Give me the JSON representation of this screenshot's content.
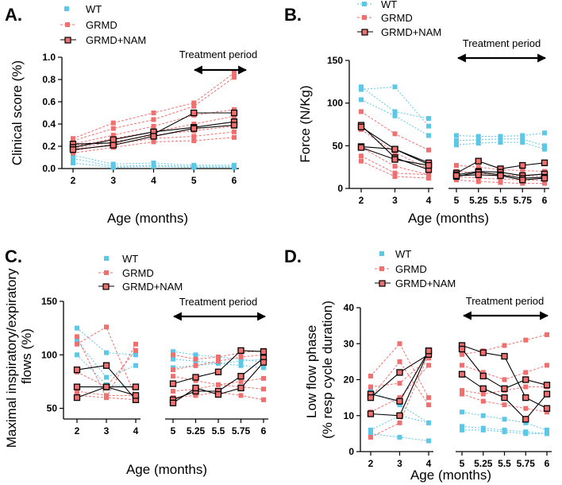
{
  "colors": {
    "wt": "#5bc8e8",
    "grmd": "#f07070",
    "nam_edge": "#000000",
    "nam_fill": "#f07070",
    "axis": "#000000"
  },
  "legend": {
    "wt": "WT",
    "grmd": "GRMD",
    "nam": "GRMD+NAM"
  },
  "chart_data": [
    {
      "panel": "A.",
      "type": "line",
      "ylabel": "Clinical score (%)",
      "xlabel": "Age (months)",
      "yticks": [
        0.0,
        0.2,
        0.4,
        0.6,
        0.8,
        1.0
      ],
      "ytick_labels": [
        "0.0",
        "0.2",
        "0.4",
        "0.6",
        "0.8",
        "1.0"
      ],
      "ylim": [
        0,
        1.0
      ],
      "x": [
        2,
        3,
        4,
        5,
        6
      ],
      "xtick_labels": [
        "2",
        "3",
        "4",
        "5",
        "6"
      ],
      "treatment_label": "Treatment period",
      "treatment_range": [
        5,
        6
      ],
      "series": [
        {
          "group": "wt",
          "values": [
            0.12,
            0.04,
            0.05,
            0.03,
            0.03
          ]
        },
        {
          "group": "wt",
          "values": [
            0.09,
            0.02,
            0.03,
            0.02,
            0.02
          ]
        },
        {
          "group": "wt",
          "values": [
            0.05,
            0.01,
            0.02,
            0.01,
            0.01
          ]
        },
        {
          "group": "grmd",
          "values": [
            0.27,
            0.41,
            0.5,
            0.59,
            0.86
          ]
        },
        {
          "group": "grmd",
          "values": [
            0.25,
            0.36,
            0.44,
            0.56,
            0.82
          ]
        },
        {
          "group": "grmd",
          "values": [
            0.22,
            0.3,
            0.38,
            0.48,
            0.53
          ]
        },
        {
          "group": "grmd",
          "values": [
            0.2,
            0.27,
            0.33,
            0.4,
            0.47
          ]
        },
        {
          "group": "grmd",
          "values": [
            0.18,
            0.24,
            0.3,
            0.34,
            0.38
          ]
        },
        {
          "group": "grmd",
          "values": [
            0.16,
            0.22,
            0.27,
            0.29,
            0.33
          ]
        },
        {
          "group": "grmd",
          "values": [
            0.14,
            0.19,
            0.24,
            0.25,
            0.28
          ]
        },
        {
          "group": "nam",
          "values": [
            0.22,
            0.23,
            0.31,
            0.5,
            0.5
          ]
        },
        {
          "group": "nam",
          "values": [
            0.19,
            0.26,
            0.33,
            0.37,
            0.42
          ]
        },
        {
          "group": "nam",
          "values": [
            0.17,
            0.21,
            0.29,
            0.36,
            0.39
          ]
        }
      ]
    },
    {
      "panel": "B.",
      "type": "line",
      "ylabel": "Force (N/Kg)",
      "xlabel": "Age (months)",
      "yticks": [
        0,
        50,
        100,
        150
      ],
      "ytick_labels": [
        "0",
        "50",
        "100",
        "150"
      ],
      "ylim": [
        0,
        150
      ],
      "x_left": [
        2,
        3,
        4
      ],
      "xtick_labels_left": [
        "2",
        "3",
        "4"
      ],
      "x_right": [
        5,
        5.25,
        5.5,
        5.75,
        6
      ],
      "xtick_labels_right": [
        "5",
        "5.25",
        "5.5",
        "5.75",
        "6"
      ],
      "treatment_label": "Treatment period",
      "treatment_range": [
        5,
        6
      ],
      "series": [
        {
          "group": "wt",
          "segment": "left",
          "values": [
            119,
            90,
            82
          ]
        },
        {
          "group": "wt",
          "segment": "left",
          "values": [
            116,
            119,
            73
          ]
        },
        {
          "group": "wt",
          "segment": "left",
          "values": [
            104,
            85,
            62
          ]
        },
        {
          "group": "grmd",
          "segment": "left",
          "values": [
            90,
            64,
            45
          ]
        },
        {
          "group": "grmd",
          "segment": "left",
          "values": [
            69,
            42,
            23
          ]
        },
        {
          "group": "grmd",
          "segment": "left",
          "values": [
            48,
            26,
            16
          ]
        },
        {
          "group": "grmd",
          "segment": "left",
          "values": [
            38,
            18,
            16
          ]
        },
        {
          "group": "grmd",
          "segment": "left",
          "values": [
            32,
            14,
            12
          ]
        },
        {
          "group": "nam",
          "segment": "left",
          "values": [
            74,
            36,
            22
          ]
        },
        {
          "group": "nam",
          "segment": "left",
          "values": [
            72,
            46,
            28
          ]
        },
        {
          "group": "nam",
          "segment": "left",
          "values": [
            49,
            46,
            30
          ]
        },
        {
          "group": "nam",
          "segment": "left",
          "values": [
            48,
            34,
            27
          ]
        },
        {
          "group": "wt",
          "segment": "right",
          "values": [
            62,
            61,
            61,
            62,
            65
          ]
        },
        {
          "group": "wt",
          "segment": "right",
          "values": [
            56,
            57,
            58,
            58,
            50
          ]
        },
        {
          "group": "wt",
          "segment": "right",
          "values": [
            51,
            53,
            54,
            54,
            46
          ]
        },
        {
          "group": "grmd",
          "segment": "right",
          "values": [
            27,
            25,
            22,
            21,
            20
          ]
        },
        {
          "group": "grmd",
          "segment": "right",
          "values": [
            20,
            18,
            16,
            15,
            14
          ]
        },
        {
          "group": "grmd",
          "segment": "right",
          "values": [
            14,
            12,
            11,
            10,
            9
          ]
        },
        {
          "group": "grmd",
          "segment": "right",
          "values": [
            10,
            8,
            7,
            6,
            6
          ]
        },
        {
          "group": "nam",
          "segment": "right",
          "values": [
            18,
            32,
            23,
            27,
            30
          ]
        },
        {
          "group": "nam",
          "segment": "right",
          "values": [
            16,
            20,
            19,
            15,
            17
          ]
        },
        {
          "group": "nam",
          "segment": "right",
          "values": [
            14,
            19,
            16,
            12,
            13
          ]
        },
        {
          "group": "nam",
          "segment": "right",
          "values": [
            15,
            16,
            15,
            10,
            12
          ]
        }
      ]
    },
    {
      "panel": "C.",
      "type": "line",
      "ylabel_lines": [
        "Maximal inspiratory/expiratory",
        "flows (%)"
      ],
      "xlabel": "Age (months)",
      "yticks": [
        50,
        100,
        150
      ],
      "ytick_labels": [
        "50",
        "100",
        "150"
      ],
      "ylim": [
        40,
        150
      ],
      "x_left": [
        2,
        3,
        4
      ],
      "xtick_labels_left": [
        "2",
        "3",
        "4"
      ],
      "x_right": [
        5,
        5.25,
        5.5,
        5.75,
        6
      ],
      "xtick_labels_right": [
        "5",
        "5.25",
        "5.5",
        "5.75",
        "6"
      ],
      "treatment_label": "Treatment period",
      "treatment_range": [
        5,
        6
      ],
      "series": [
        {
          "group": "wt",
          "segment": "left",
          "values": [
            125,
            102,
            100
          ]
        },
        {
          "group": "wt",
          "segment": "left",
          "values": [
            113,
            79,
            90
          ]
        },
        {
          "group": "wt",
          "segment": "left",
          "values": [
            100,
            72,
            70
          ]
        },
        {
          "group": "grmd",
          "segment": "left",
          "values": [
            117,
            60,
            110
          ]
        },
        {
          "group": "grmd",
          "segment": "left",
          "values": [
            110,
            126,
            60
          ]
        },
        {
          "group": "grmd",
          "segment": "left",
          "values": [
            84,
            70,
            104
          ]
        },
        {
          "group": "grmd",
          "segment": "left",
          "values": [
            66,
            62,
            62
          ]
        },
        {
          "group": "grmd",
          "segment": "left",
          "values": [
            62,
            60,
            58
          ]
        },
        {
          "group": "nam",
          "segment": "left",
          "values": [
            86,
            90,
            58
          ]
        },
        {
          "group": "nam",
          "segment": "left",
          "values": [
            70,
            70,
            70
          ]
        },
        {
          "group": "nam",
          "segment": "left",
          "values": [
            60,
            70,
            62
          ]
        },
        {
          "group": "wt",
          "segment": "right",
          "values": [
            103,
            100,
            98,
            96,
            93
          ]
        },
        {
          "group": "wt",
          "segment": "right",
          "values": [
            96,
            94,
            92,
            90,
            88
          ]
        },
        {
          "group": "wt",
          "segment": "right",
          "values": [
            88,
            90,
            92,
            94,
            96
          ]
        },
        {
          "group": "grmd",
          "segment": "right",
          "values": [
            100,
            96,
            98,
            102,
            104
          ]
        },
        {
          "group": "grmd",
          "segment": "right",
          "values": [
            86,
            90,
            94,
            98,
            100
          ]
        },
        {
          "group": "grmd",
          "segment": "right",
          "values": [
            80,
            76,
            72,
            75,
            78
          ]
        },
        {
          "group": "grmd",
          "segment": "right",
          "values": [
            66,
            68,
            72,
            70,
            68
          ]
        },
        {
          "group": "grmd",
          "segment": "right",
          "values": [
            60,
            62,
            65,
            62,
            58
          ]
        },
        {
          "group": "nam",
          "segment": "right",
          "values": [
            73,
            79,
            84,
            104,
            103
          ]
        },
        {
          "group": "nam",
          "segment": "right",
          "values": [
            58,
            66,
            66,
            80,
            97
          ]
        },
        {
          "group": "nam",
          "segment": "right",
          "values": [
            55,
            69,
            63,
            69,
            93
          ]
        }
      ]
    },
    {
      "panel": "D.",
      "type": "line",
      "ylabel_lines": [
        "Low flow phase",
        "(% resp cycle duration)"
      ],
      "xlabel": "Age (months)",
      "yticks": [
        0,
        10,
        20,
        30,
        40
      ],
      "ytick_labels": [
        "0",
        "10",
        "20",
        "30",
        "40"
      ],
      "ylim": [
        0,
        40
      ],
      "x_left": [
        2,
        3,
        4
      ],
      "xtick_labels_left": [
        "2",
        "3",
        "4"
      ],
      "x_right": [
        5,
        5.25,
        5.5,
        5.75,
        6
      ],
      "xtick_labels_right": [
        "5",
        "5.25",
        "5.5",
        "5.75",
        "6"
      ],
      "treatment_label": "Treatment period",
      "treatment_range": [
        5,
        6
      ],
      "series": [
        {
          "group": "wt",
          "segment": "left",
          "values": [
            17,
            13,
            8
          ]
        },
        {
          "group": "wt",
          "segment": "left",
          "values": [
            6,
            10,
            8
          ]
        },
        {
          "group": "wt",
          "segment": "left",
          "values": [
            5,
            4,
            3
          ]
        },
        {
          "group": "grmd",
          "segment": "left",
          "values": [
            21,
            30,
            15
          ]
        },
        {
          "group": "grmd",
          "segment": "left",
          "values": [
            18,
            19,
            26
          ]
        },
        {
          "group": "grmd",
          "segment": "left",
          "values": [
            15,
            25,
            13
          ]
        },
        {
          "group": "grmd",
          "segment": "left",
          "values": [
            11,
            15,
            24
          ]
        },
        {
          "group": "grmd",
          "segment": "left",
          "values": [
            4,
            8,
            27
          ]
        },
        {
          "group": "nam",
          "segment": "left",
          "values": [
            16,
            14,
            28
          ]
        },
        {
          "group": "nam",
          "segment": "left",
          "values": [
            15,
            22,
            27
          ]
        },
        {
          "group": "nam",
          "segment": "left",
          "values": [
            10.5,
            10,
            28
          ]
        },
        {
          "group": "wt",
          "segment": "right",
          "values": [
            11,
            10,
            9,
            8,
            6
          ]
        },
        {
          "group": "wt",
          "segment": "right",
          "values": [
            7,
            6.5,
            6,
            5.5,
            5
          ]
        },
        {
          "group": "wt",
          "segment": "right",
          "values": [
            6,
            6,
            5.5,
            5,
            5
          ]
        },
        {
          "group": "grmd",
          "segment": "right",
          "values": [
            27,
            28,
            29.5,
            31,
            32.5
          ]
        },
        {
          "group": "grmd",
          "segment": "right",
          "values": [
            24,
            22,
            20,
            22,
            24
          ]
        },
        {
          "group": "grmd",
          "segment": "right",
          "values": [
            17,
            16,
            17,
            18,
            18
          ]
        },
        {
          "group": "grmd",
          "segment": "right",
          "values": [
            16,
            14,
            13,
            12,
            11
          ]
        },
        {
          "group": "nam",
          "segment": "right",
          "values": [
            29.5,
            27.5,
            26.5,
            15,
            12
          ]
        },
        {
          "group": "nam",
          "segment": "right",
          "values": [
            28.5,
            21,
            17.5,
            20,
            18.5
          ]
        },
        {
          "group": "nam",
          "segment": "right",
          "values": [
            21.5,
            17.5,
            15,
            9,
            16
          ]
        }
      ]
    }
  ]
}
